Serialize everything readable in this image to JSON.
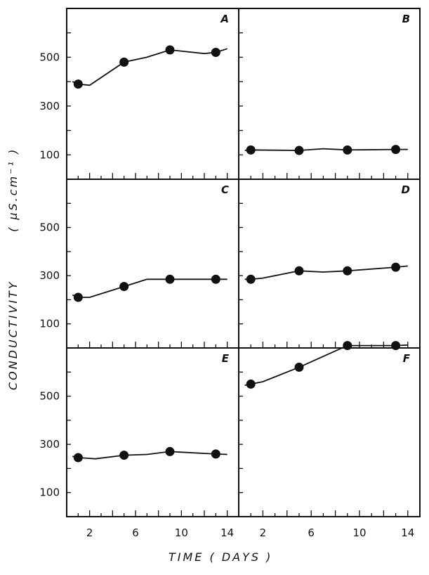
{
  "chart_data": {
    "type": "line",
    "title": "",
    "ylabel": "CONDUCTIVITY",
    "yunit": "( μS.cm⁻¹ )",
    "xlabel": "TIME ( DAYS )",
    "xlim": [
      0,
      15
    ],
    "ylim": [
      0,
      700
    ],
    "xticks": [
      2,
      6,
      10,
      14
    ],
    "yticks": [
      100,
      300,
      500
    ],
    "grid": false,
    "legend": "none",
    "panels": [
      {
        "letter": "A",
        "points": [
          [
            1,
            390
          ],
          [
            5,
            480
          ],
          [
            9,
            530
          ],
          [
            13,
            520
          ]
        ],
        "line_extra": [
          [
            0.5,
            400
          ],
          [
            2,
            385
          ],
          [
            7,
            500
          ],
          [
            12,
            515
          ],
          [
            14,
            535
          ]
        ]
      },
      {
        "letter": "B",
        "points": [
          [
            1,
            120
          ],
          [
            5,
            118
          ],
          [
            9,
            120
          ],
          [
            13,
            122
          ]
        ],
        "line_extra": [
          [
            0.5,
            118
          ],
          [
            7,
            125
          ],
          [
            14,
            122
          ]
        ]
      },
      {
        "letter": "C",
        "points": [
          [
            1,
            210
          ],
          [
            5,
            255
          ],
          [
            9,
            285
          ],
          [
            13,
            285
          ]
        ],
        "line_extra": [
          [
            0.5,
            220
          ],
          [
            2,
            210
          ],
          [
            7,
            285
          ],
          [
            14,
            285
          ]
        ]
      },
      {
        "letter": "D",
        "points": [
          [
            1,
            285
          ],
          [
            5,
            320
          ],
          [
            9,
            320
          ],
          [
            13,
            335
          ]
        ],
        "line_extra": [
          [
            0.5,
            285
          ],
          [
            2,
            290
          ],
          [
            7,
            315
          ],
          [
            14,
            340
          ]
        ]
      },
      {
        "letter": "E",
        "points": [
          [
            1,
            245
          ],
          [
            5,
            255
          ],
          [
            9,
            270
          ],
          [
            13,
            260
          ]
        ],
        "line_extra": [
          [
            0.5,
            250
          ],
          [
            2.5,
            240
          ],
          [
            7,
            258
          ],
          [
            14,
            258
          ]
        ]
      },
      {
        "letter": "F",
        "points": [
          [
            1,
            550
          ],
          [
            5,
            620
          ],
          [
            9,
            710
          ],
          [
            13,
            710
          ]
        ],
        "line_extra": [
          [
            0.5,
            545
          ],
          [
            2,
            560
          ],
          [
            14,
            712
          ]
        ]
      }
    ]
  }
}
